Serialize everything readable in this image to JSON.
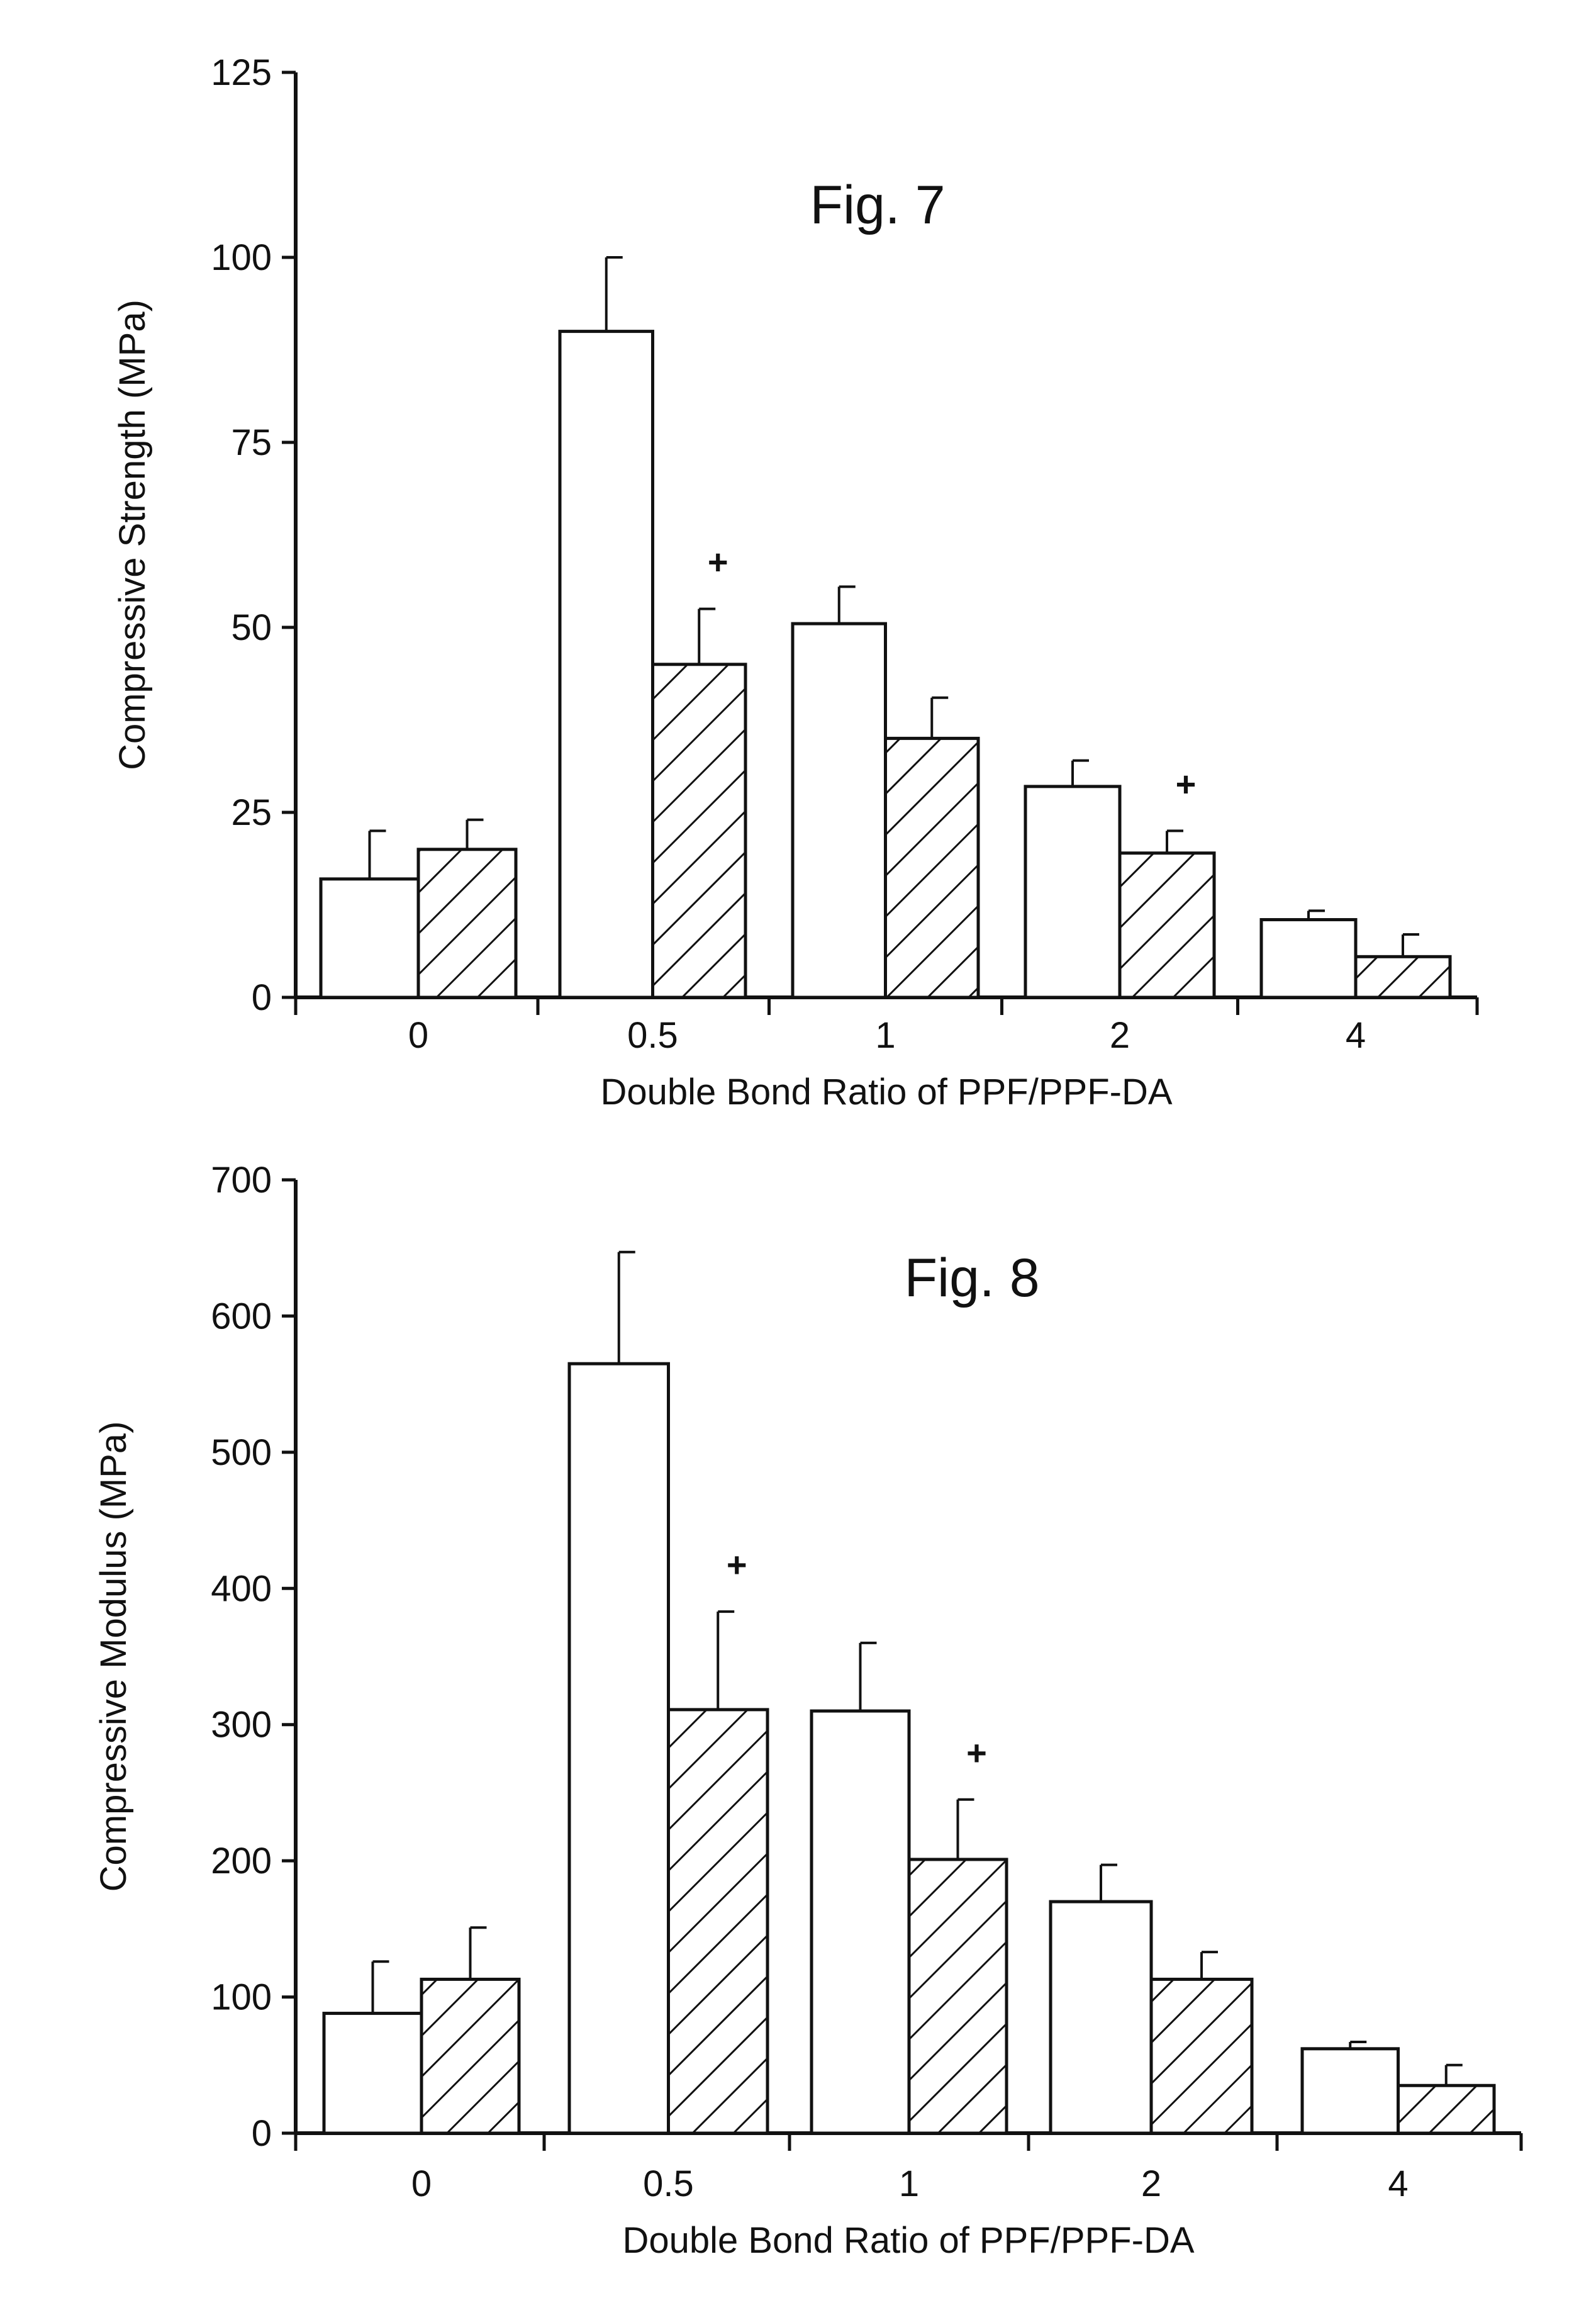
{
  "chart_data": [
    {
      "type": "bar",
      "title": "Fig. 7",
      "xlabel": "Double Bond Ratio of PPF/PPF-DA",
      "ylabel": "Compressive Strength (MPa)",
      "ylim": [
        0,
        125
      ],
      "yticks": [
        0,
        25,
        50,
        75,
        100,
        125
      ],
      "categories": [
        "0",
        "0.5",
        "1",
        "2",
        "4"
      ],
      "series": [
        {
          "name": "open",
          "pattern": "open",
          "values": [
            16,
            90,
            50.5,
            28.5,
            10.5
          ],
          "errors": [
            6.5,
            10,
            5,
            3.5,
            1.2
          ]
        },
        {
          "name": "hatched",
          "pattern": "hatched",
          "values": [
            20,
            45,
            35,
            19.5,
            5.5
          ],
          "errors": [
            4,
            7.5,
            5.5,
            3,
            3
          ]
        }
      ],
      "annotations": [
        {
          "text": "+",
          "category": "0.5",
          "series": "hatched"
        },
        {
          "text": "+",
          "category": "2",
          "series": "hatched"
        }
      ]
    },
    {
      "type": "bar",
      "title": "Fig. 8",
      "xlabel": "Double Bond Ratio of PPF/PPF-DA",
      "ylabel": "Compressive Modulus (MPa)",
      "ylim": [
        0,
        700
      ],
      "yticks": [
        0,
        100,
        200,
        300,
        400,
        500,
        600,
        700
      ],
      "categories": [
        "0",
        "0.5",
        "1",
        "2",
        "4"
      ],
      "series": [
        {
          "name": "open",
          "pattern": "open",
          "values": [
            88,
            565,
            310,
            170,
            62
          ],
          "errors": [
            38,
            82,
            50,
            27,
            5
          ]
        },
        {
          "name": "hatched",
          "pattern": "hatched",
          "values": [
            113,
            311,
            201,
            113,
            35
          ],
          "errors": [
            38,
            72,
            44,
            20,
            15
          ]
        }
      ],
      "annotations": [
        {
          "text": "+",
          "category": "0.5",
          "series": "hatched"
        },
        {
          "text": "+",
          "category": "1",
          "series": "hatched"
        }
      ]
    }
  ]
}
